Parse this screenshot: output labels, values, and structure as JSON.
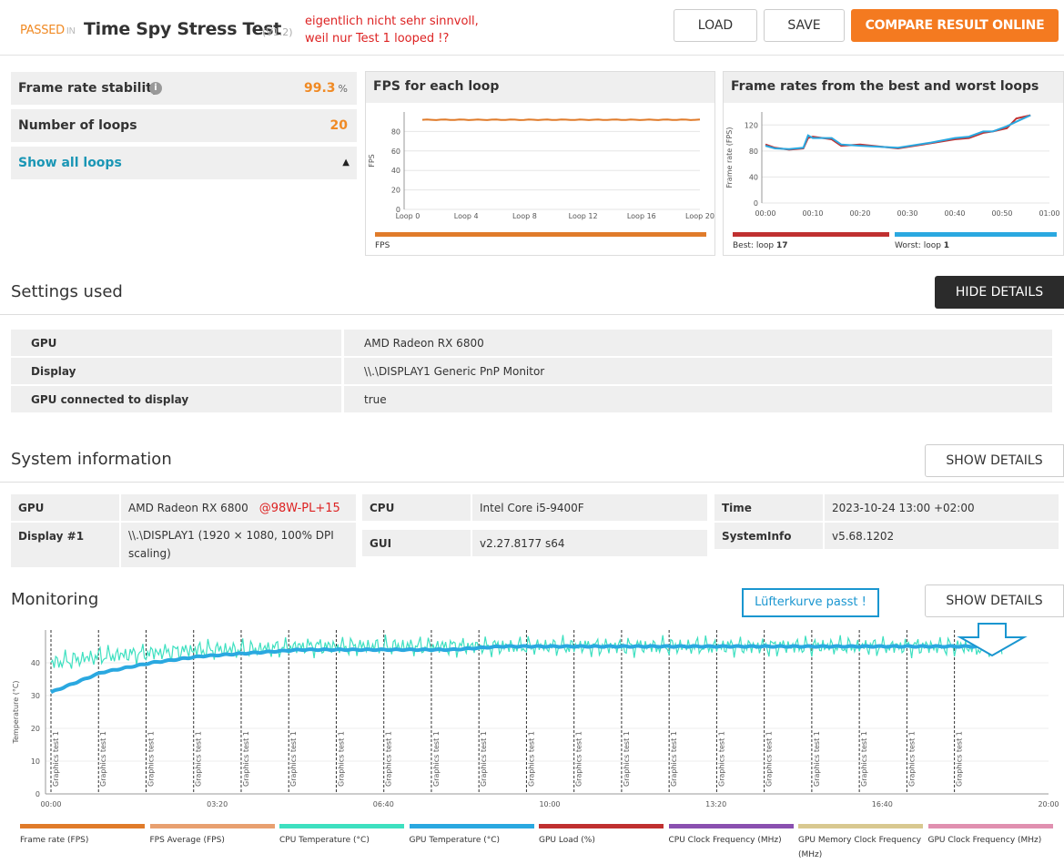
{
  "header": {
    "passed": "PASSED",
    "in": "IN",
    "title": "Time Spy Stress Test",
    "version": "(V1.2)",
    "note_line1": "eigentlich nicht sehr sinnvoll,",
    "note_line2": "weil nur Test 1 looped !?",
    "load_label": "LOAD",
    "save_label": "SAVE",
    "compare_label": "COMPARE RESULT ONLINE"
  },
  "stats": {
    "stability_label": "Frame rate stability",
    "stability_value": "99.3",
    "stability_unit": "%",
    "loops_label": "Number of loops",
    "loops_value": "20",
    "show_loops": "Show all loops"
  },
  "fps_chart": {
    "title": "FPS for each loop",
    "ylabel": "FPS",
    "yticks": [
      "0",
      "20",
      "40",
      "60",
      "80"
    ],
    "xticks": [
      "Loop 0",
      "Loop 4",
      "Loop 8",
      "Loop 12",
      "Loop 16",
      "Loop 20"
    ],
    "legend": "FPS"
  },
  "best_worst_chart": {
    "title": "Frame rates from the best and worst loops",
    "ylabel": "Frame rate (FPS)",
    "yticks": [
      "0",
      "40",
      "80",
      "120"
    ],
    "xticks": [
      "00:00",
      "00:10",
      "00:20",
      "00:30",
      "00:40",
      "00:50",
      "01:00"
    ],
    "best_label": "Best: loop",
    "best_loop": "17",
    "worst_label": "Worst: loop",
    "worst_loop": "1"
  },
  "settings": {
    "title": "Settings used",
    "hide_label": "HIDE DETAILS",
    "rows": [
      {
        "key": "GPU",
        "value": "AMD Radeon RX 6800"
      },
      {
        "key": "Display",
        "value": "\\\\.\\DISPLAY1 Generic PnP Monitor"
      },
      {
        "key": "GPU connected to display",
        "value": "true"
      }
    ]
  },
  "sysinfo": {
    "title": "System information",
    "show_label": "SHOW DETAILS",
    "gpu_key": "GPU",
    "gpu_value": "AMD Radeon RX 6800",
    "gpu_note": "@98W-PL+15",
    "display_key": "Display #1",
    "display_value_line1": "\\\\.\\DISPLAY1 (1920 × 1080, 100% DPI",
    "display_value_line2": "scaling)",
    "cpu_key": "CPU",
    "cpu_value": "Intel Core i5-9400F",
    "gui_key": "GUI",
    "gui_value": "v2.27.8177 s64",
    "time_key": "Time",
    "time_value": "2023-10-24 13:00 +02:00",
    "sysinfo_key": "SystemInfo",
    "sysinfo_value": "v5.68.1202"
  },
  "monitoring": {
    "title": "Monitoring",
    "show_label": "SHOW DETAILS",
    "note": "Lüfterkurve passt !",
    "ylabel": "Temperature (°C)",
    "yticks": [
      "0",
      "10",
      "20",
      "30",
      "40"
    ],
    "xticks": [
      "00:00",
      "03:20",
      "06:40",
      "10:00",
      "13:20",
      "16:40",
      "20:00"
    ],
    "marker_label": "Graphics test 1",
    "legend": [
      {
        "name": "Frame rate (FPS)",
        "color": "#e07b2a"
      },
      {
        "name": "FPS Average (FPS)",
        "color": "#e8a070"
      },
      {
        "name": "CPU Temperature (°C)",
        "color": "#3de0c0"
      },
      {
        "name": "GPU Temperature (°C)",
        "color": "#2aa8e0"
      },
      {
        "name": "GPU Load (%)",
        "color": "#c03030"
      },
      {
        "name": "CPU Clock Frequency (MHz)",
        "color": "#8a50b0"
      },
      {
        "name": "GPU Memory Clock Frequency",
        "color": "#d8c890"
      },
      {
        "name": "GPU Clock Frequency (MHz)",
        "color": "#e090b0"
      }
    ],
    "legend_extra": "(MHz)"
  },
  "chart_data": [
    {
      "type": "line",
      "title": "FPS for each loop",
      "ylabel": "FPS",
      "ylim": [
        0,
        100
      ],
      "x": [
        "Loop 0",
        "Loop 4",
        "Loop 8",
        "Loop 12",
        "Loop 16",
        "Loop 20"
      ],
      "series": [
        {
          "name": "FPS",
          "values": [
            92,
            92,
            92,
            92,
            92,
            92
          ]
        }
      ]
    },
    {
      "type": "line",
      "title": "Frame rates from the best and worst loops",
      "ylabel": "Frame rate (FPS)",
      "ylim": [
        0,
        140
      ],
      "x": [
        0,
        2,
        5,
        8,
        9,
        10,
        14,
        16,
        20,
        28,
        35,
        40,
        43,
        46,
        48,
        51,
        53,
        56
      ],
      "series": [
        {
          "name": "Best: loop 17",
          "values": [
            90,
            85,
            82,
            84,
            100,
            102,
            98,
            88,
            90,
            84,
            92,
            98,
            100,
            108,
            110,
            115,
            130,
            135
          ]
        },
        {
          "name": "Worst: loop 1",
          "values": [
            88,
            84,
            83,
            85,
            104,
            100,
            100,
            90,
            88,
            85,
            93,
            100,
            102,
            110,
            110,
            118,
            125,
            135
          ]
        }
      ]
    },
    {
      "type": "line",
      "title": "Monitoring",
      "ylabel": "Temperature (°C)",
      "ylim": [
        0,
        50
      ],
      "x_range_seconds": [
        0,
        1200
      ],
      "series": [
        {
          "name": "CPU Temperature (°C)",
          "values": [
            40,
            42,
            43,
            44,
            44,
            45,
            45,
            45,
            45,
            45,
            45,
            45,
            45,
            45,
            45,
            45,
            45,
            45,
            45,
            44
          ]
        },
        {
          "name": "GPU Temperature (°C)",
          "values": [
            31,
            37,
            40,
            42,
            43,
            44,
            44,
            44,
            44,
            45,
            45,
            45,
            45,
            45,
            45,
            45,
            45,
            45,
            45,
            45
          ]
        }
      ]
    }
  ]
}
